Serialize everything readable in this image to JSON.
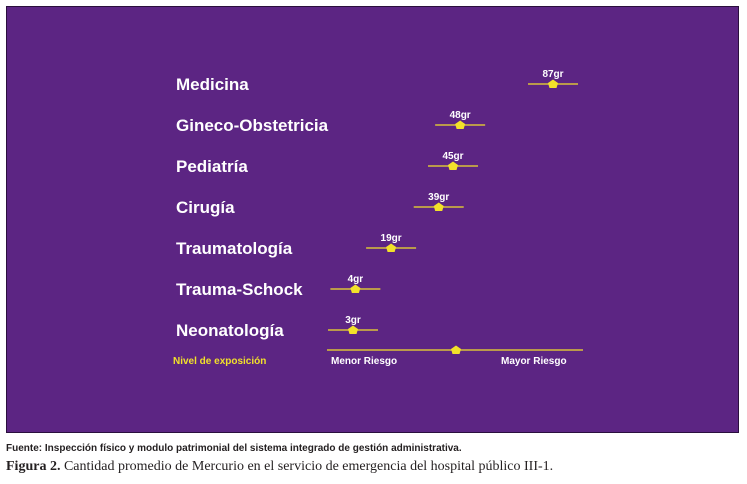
{
  "colors": {
    "background": "#5c2583",
    "line": "#f2e12a",
    "marker": "#f2e12a",
    "label_text": "#ffffff",
    "axis_title": "#f2e12a"
  },
  "chart_data": {
    "type": "scatter",
    "categories": [
      "Medicina",
      "Gineco-Obstetricia",
      "Pediatría",
      "Cirugía",
      "Traumatología",
      "Trauma-Schock",
      "Neonatología"
    ],
    "values": [
      87,
      48,
      45,
      39,
      19,
      4,
      3
    ],
    "value_labels": [
      "87gr",
      "48gr",
      "45gr",
      "39gr",
      "19gr",
      "4gr",
      "3gr"
    ],
    "axis": {
      "title": "Nivel de exposición",
      "min_label": "Menor Riesgo",
      "max_label": "Mayor Riesgo"
    }
  },
  "footer": {
    "source": "Fuente: Inspección físico y modulo patrimonial del sistema integrado de gestión administrativa.",
    "caption_prefix": "Figura 2.",
    "caption_text": " Cantidad promedio de Mercurio en el servicio de emergencia del hospital público III-1."
  }
}
